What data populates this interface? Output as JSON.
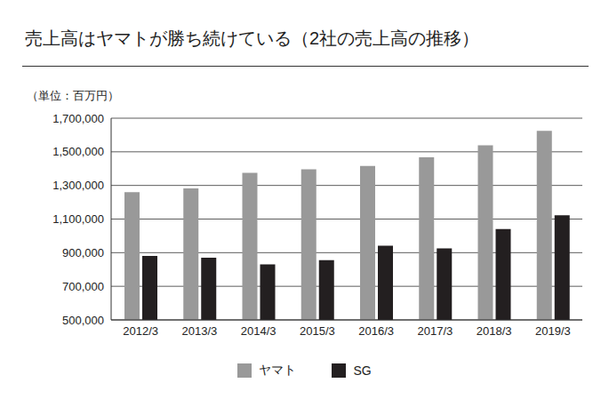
{
  "chart_data": {
    "type": "bar",
    "title": "売上高はヤマトが勝ち続けている（2社の売上高の推移）",
    "subtitle": "（単位：百万円）",
    "categories": [
      "2012/3",
      "2013/3",
      "2014/3",
      "2015/3",
      "2016/3",
      "2017/3",
      "2018/3",
      "2019/3"
    ],
    "series": [
      {
        "name": "ヤマト",
        "color": "#999999",
        "values": [
          1260000,
          1283000,
          1375000,
          1396000,
          1416000,
          1468000,
          1539000,
          1625000
        ]
      },
      {
        "name": "SG",
        "color": "#231f20",
        "values": [
          880000,
          870000,
          830000,
          855000,
          942000,
          925000,
          1040000,
          1122000
        ]
      }
    ],
    "ylim": [
      500000,
      1700000
    ],
    "yticks": [
      {
        "value": 500000,
        "label": "500,000"
      },
      {
        "value": 700000,
        "label": "700,000"
      },
      {
        "value": 900000,
        "label": "900,000"
      },
      {
        "value": 1100000,
        "label": "1,100,000"
      },
      {
        "value": 1300000,
        "label": "1,300,000"
      },
      {
        "value": 1500000,
        "label": "1,500,000"
      },
      {
        "value": 1700000,
        "label": "1,700,000"
      }
    ],
    "grid": true,
    "legend": "bottom"
  }
}
